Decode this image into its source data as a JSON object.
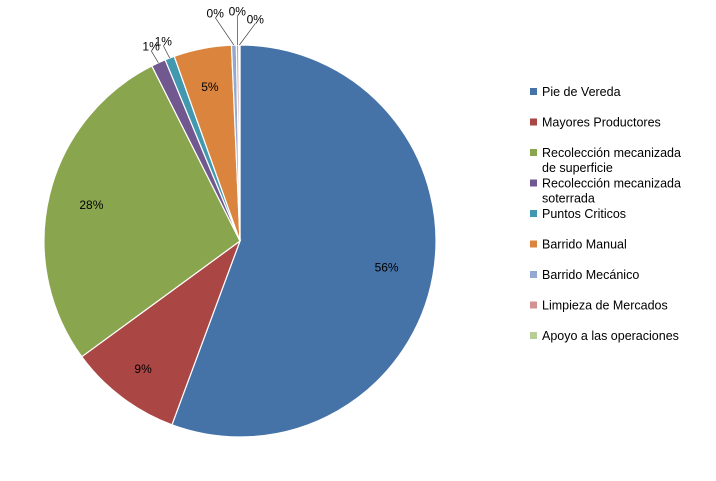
{
  "chart_data": {
    "type": "pie",
    "categories": [
      "Pie de Vereda",
      "Mayores Productores",
      "Recolección mecanizada de superficie",
      "Recolección mecanizada soterrada",
      "Puntos Criticos",
      "Barrido Manual",
      "Barrido Mecánico",
      "Limpieza de Mercados",
      "Apoyo a las operaciones"
    ],
    "values": [
      56.2,
      9.4,
      27.9,
      1.2,
      0.8,
      4.8,
      0.4,
      0.2,
      0.1
    ],
    "labels": [
      "56%",
      "9%",
      "28%",
      "1%",
      "1%",
      "5%",
      "0%",
      "0%",
      "0%"
    ],
    "colors": [
      "#4572A7",
      "#AA4643",
      "#89A54E",
      "#71588F",
      "#4198AF",
      "#DB843D",
      "#93A9CF",
      "#D19392",
      "#B9CD96"
    ],
    "legend_position": "right"
  }
}
